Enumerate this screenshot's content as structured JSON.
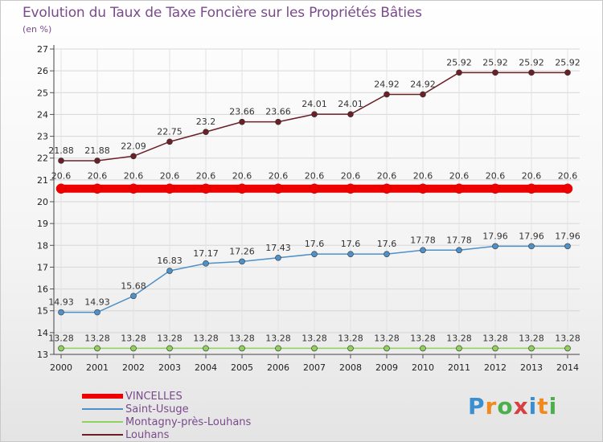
{
  "title": "Evolution du Taux de Taxe Foncière sur les Propriétés Bâties",
  "unit_label": "(en %)",
  "brand": {
    "text": "Proxiti",
    "letter_colors": [
      "#3a8fd0",
      "#f08a1c",
      "#4cae4c",
      "#d64040",
      "#3a8fd0",
      "#f08a1c",
      "#4cae4c"
    ]
  },
  "chart_data": {
    "type": "line",
    "x": [
      "2000",
      "2001",
      "2002",
      "2003",
      "2004",
      "2005",
      "2006",
      "2007",
      "2008",
      "2009",
      "2010",
      "2011",
      "2012",
      "2013",
      "2014"
    ],
    "ylim": [
      13,
      27
    ],
    "yticks": [
      13,
      14,
      15,
      16,
      17,
      18,
      19,
      20,
      21,
      22,
      23,
      24,
      25,
      26,
      27
    ],
    "grid": true,
    "series": [
      {
        "name": "VINCELLES",
        "color": "#ee0000",
        "values": [
          20.6,
          20.6,
          20.6,
          20.6,
          20.6,
          20.6,
          20.6,
          20.6,
          20.6,
          20.6,
          20.6,
          20.6,
          20.6,
          20.6,
          20.6
        ],
        "labels": [
          "20.6",
          "20.6",
          "20.6",
          "20.6",
          "20.6",
          "20.6",
          "20.6",
          "20.6",
          "20.6",
          "20.6",
          "20.6",
          "20.6",
          "20.6",
          "20.6",
          "20.6"
        ]
      },
      {
        "name": "Saint-Usuge",
        "color": "#4f90c8",
        "values": [
          14.93,
          14.93,
          15.68,
          16.83,
          17.17,
          17.26,
          17.43,
          17.6,
          17.6,
          17.6,
          17.78,
          17.78,
          17.96,
          17.96,
          17.96
        ],
        "labels": [
          "14.93",
          "14.93",
          "15.68",
          "16.83",
          "17.17",
          "17.26",
          "17.43",
          "17.6",
          "17.6",
          "17.6",
          "17.78",
          "17.78",
          "17.96",
          "17.96",
          "17.96"
        ]
      },
      {
        "name": "Montagny-près-Louhans",
        "color": "#8fd15a",
        "values": [
          13.28,
          13.28,
          13.28,
          13.28,
          13.28,
          13.28,
          13.28,
          13.28,
          13.28,
          13.28,
          13.28,
          13.28,
          13.28,
          13.28,
          13.28
        ],
        "labels": [
          "13.28",
          "13.28",
          "13.28",
          "13.28",
          "13.28",
          "13.28",
          "13.28",
          "13.28",
          "13.28",
          "13.28",
          "13.28",
          "13.28",
          "13.28",
          "13.28",
          "13.28"
        ]
      },
      {
        "name": "Louhans",
        "color": "#6b1f26",
        "values": [
          21.88,
          21.88,
          22.09,
          22.75,
          23.2,
          23.66,
          23.66,
          24.01,
          24.01,
          24.92,
          24.92,
          25.92,
          25.92,
          25.92,
          25.92
        ],
        "labels": [
          "21.88",
          "21.88",
          "22.09",
          "22.75",
          "23.2",
          "23.66",
          "23.66",
          "24.01",
          "24.01",
          "24.92",
          "24.92",
          "25.92",
          "25.92",
          "25.92",
          "25.92"
        ]
      }
    ]
  }
}
